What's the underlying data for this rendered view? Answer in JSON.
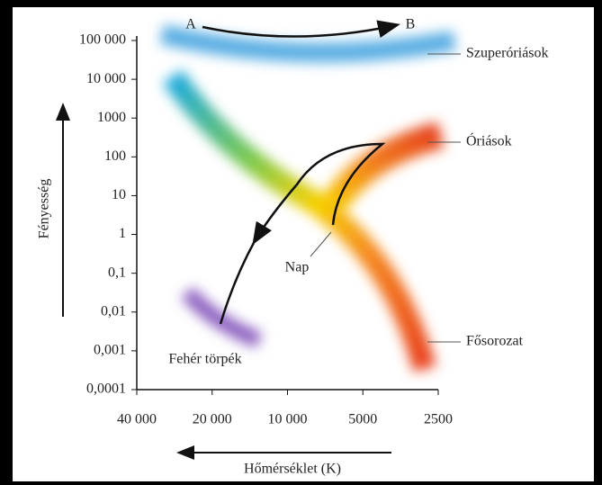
{
  "y_axis": {
    "label": "Fényesség",
    "ticks": [
      "100 000",
      "10 000",
      "1000",
      "100",
      "10",
      "1",
      "0,1",
      "0,01",
      "0,001",
      "0,0001"
    ]
  },
  "x_axis": {
    "label": "Hőmérséklet (K)",
    "ticks": [
      "40 000",
      "20 000",
      "10 000",
      "5000",
      "2500"
    ]
  },
  "labels": {
    "a": "A",
    "b": "B",
    "supergiants": "Szuperóriások",
    "giants": "Óriások",
    "main_sequence": "Fősorozat",
    "white_dwarfs": "Fehér törpék",
    "sun": "Nap"
  }
}
